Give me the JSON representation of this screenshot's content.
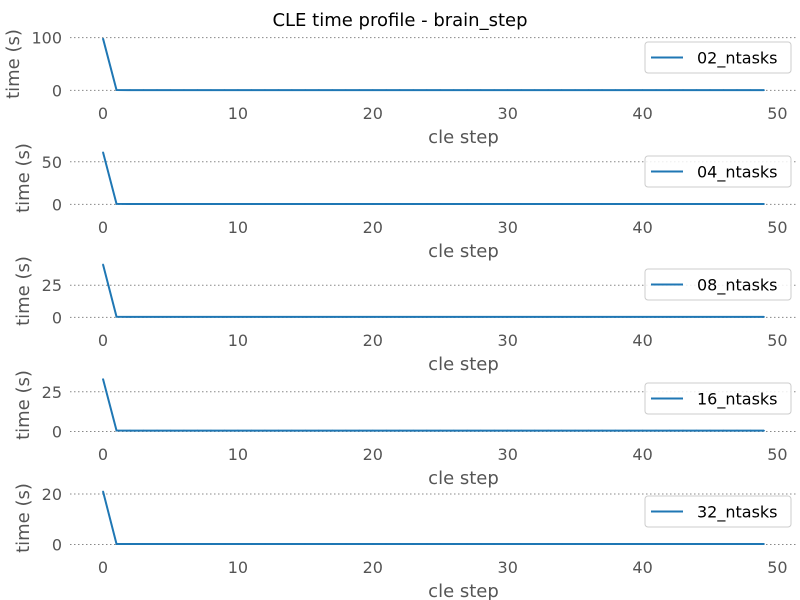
{
  "chart_data": {
    "type": "line",
    "title": "CLE time profile - brain_step",
    "grid": "y-dotted",
    "legend_placement": "top-right",
    "panels": [
      {
        "series": [
          {
            "name": "02_ntasks",
            "x0": 0,
            "values": [
              98,
              0.6,
              0.5,
              0.5,
              0.5,
              0.5,
              0.5,
              0.5,
              0.5,
              0.5,
              0.5,
              0.5,
              0.5,
              0.5,
              0.5,
              0.5,
              0.5,
              0.5,
              0.5,
              0.5,
              0.5,
              0.5,
              0.5,
              0.5,
              0.5,
              0.5,
              0.5,
              0.5,
              0.5,
              0.5,
              0.5,
              0.5,
              0.5,
              0.5,
              0.5,
              0.5,
              0.5,
              0.5,
              0.5,
              0.5,
              0.5,
              0.5,
              0.5,
              0.5,
              0.5,
              0.5,
              0.5,
              0.5,
              0.5,
              0.5
            ]
          }
        ],
        "xlabel": "cle step",
        "ylabel": "time (s)",
        "xlim": [
          -2.45,
          51.45
        ],
        "ylim": [
          -5,
          105
        ],
        "yticks": [
          0,
          100
        ],
        "xticks": [
          0,
          10,
          20,
          30,
          40,
          50
        ]
      },
      {
        "series": [
          {
            "name": "04_ntasks",
            "x0": 0,
            "values": [
              61,
              0.6,
              0.5,
              0.5,
              0.5,
              0.5,
              0.5,
              0.5,
              0.5,
              0.5,
              0.5,
              0.5,
              0.5,
              0.5,
              0.5,
              0.5,
              0.5,
              0.5,
              0.5,
              0.5,
              0.5,
              0.5,
              0.5,
              0.5,
              0.5,
              0.5,
              0.5,
              0.5,
              0.5,
              0.5,
              0.5,
              0.5,
              0.5,
              0.5,
              0.5,
              0.5,
              0.5,
              0.5,
              0.5,
              0.5,
              0.5,
              0.5,
              0.5,
              0.5,
              0.5,
              0.5,
              0.5,
              0.5,
              0.5,
              0.5
            ]
          }
        ],
        "xlabel": "cle step",
        "ylabel": "time (s)",
        "xlim": [
          -2.45,
          51.45
        ],
        "ylim": [
          -3,
          65
        ],
        "yticks": [
          0,
          50
        ],
        "xticks": [
          0,
          10,
          20,
          30,
          40,
          50
        ]
      },
      {
        "series": [
          {
            "name": "08_ntasks",
            "x0": 0,
            "values": [
              41,
              0.5,
              0.4,
              0.4,
              0.4,
              0.4,
              0.4,
              0.4,
              0.4,
              0.4,
              0.4,
              0.4,
              0.4,
              0.4,
              0.4,
              0.4,
              0.4,
              0.4,
              0.4,
              0.4,
              0.4,
              0.4,
              0.4,
              0.4,
              0.4,
              0.4,
              0.4,
              0.4,
              0.4,
              0.4,
              0.4,
              0.4,
              0.4,
              0.4,
              0.4,
              0.4,
              0.4,
              0.4,
              0.4,
              0.4,
              0.4,
              0.4,
              0.4,
              0.4,
              0.4,
              0.4,
              0.4,
              0.4,
              0.4,
              0.4
            ]
          }
        ],
        "xlabel": "cle step",
        "ylabel": "time (s)",
        "xlim": [
          -2.45,
          51.45
        ],
        "ylim": [
          -2,
          43
        ],
        "yticks": [
          0,
          25
        ],
        "xticks": [
          0,
          10,
          20,
          30,
          40,
          50
        ]
      },
      {
        "series": [
          {
            "name": "16_ntasks",
            "x0": 0,
            "values": [
              33,
              0.6,
              0.5,
              0.5,
              0.5,
              0.5,
              0.5,
              0.5,
              0.5,
              0.5,
              0.5,
              0.5,
              0.5,
              0.5,
              0.5,
              0.5,
              0.5,
              0.5,
              0.5,
              0.5,
              0.5,
              0.5,
              0.5,
              0.5,
              0.5,
              0.5,
              0.5,
              0.5,
              0.5,
              0.5,
              0.5,
              0.5,
              0.5,
              0.5,
              0.5,
              0.5,
              0.5,
              0.5,
              0.5,
              0.5,
              0.5,
              0.5,
              0.5,
              0.5,
              0.5,
              0.5,
              0.5,
              0.5,
              0.5,
              0.5
            ]
          }
        ],
        "xlabel": "cle step",
        "ylabel": "time (s)",
        "xlim": [
          -2.45,
          51.45
        ],
        "ylim": [
          -1.6,
          35
        ],
        "yticks": [
          0,
          25
        ],
        "xticks": [
          0,
          10,
          20,
          30,
          40,
          50
        ]
      },
      {
        "series": [
          {
            "name": "32_ntasks",
            "x0": 0,
            "values": [
              21,
              0.2,
              0.2,
              0.2,
              0.2,
              0.2,
              0.2,
              0.2,
              0.2,
              0.2,
              0.2,
              0.2,
              0.2,
              0.2,
              0.2,
              0.2,
              0.2,
              0.2,
              0.2,
              0.2,
              0.2,
              0.2,
              0.2,
              0.2,
              0.2,
              0.2,
              0.2,
              0.2,
              0.2,
              0.2,
              0.2,
              0.2,
              0.2,
              0.2,
              0.2,
              0.2,
              0.2,
              0.2,
              0.2,
              0.2,
              0.2,
              0.2,
              0.2,
              0.2,
              0.2,
              0.2,
              0.2,
              0.2,
              0.2,
              0.2
            ]
          }
        ],
        "xlabel": "cle step",
        "ylabel": "time (s)",
        "xlim": [
          -2.45,
          51.45
        ],
        "ylim": [
          -1,
          22
        ],
        "yticks": [
          0,
          20
        ],
        "xticks": [
          0,
          10,
          20,
          30,
          40,
          50
        ]
      }
    ]
  },
  "colors": {
    "line": "#1f77b4",
    "grid": "#888888",
    "tick_text": "#555555",
    "legend_border": "#cccccc"
  }
}
